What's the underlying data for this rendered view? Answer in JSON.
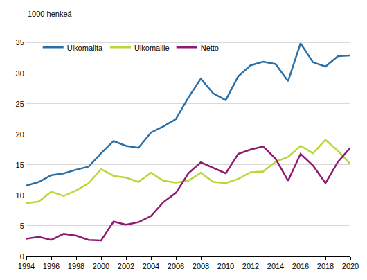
{
  "chart_data": {
    "type": "line",
    "ylabel": "1000 henkeä",
    "x": [
      1994,
      1995,
      1996,
      1997,
      1998,
      1999,
      2000,
      2001,
      2002,
      2003,
      2004,
      2005,
      2006,
      2007,
      2008,
      2009,
      2010,
      2011,
      2012,
      2013,
      2014,
      2015,
      2016,
      2017,
      2018,
      2019,
      2020
    ],
    "series": [
      {
        "name": "Ulkomailta",
        "color": "#2a6fa6",
        "values": [
          11.6,
          12.2,
          13.3,
          13.6,
          14.2,
          14.7,
          16.9,
          18.9,
          18.1,
          17.8,
          20.3,
          21.3,
          22.5,
          26.0,
          29.1,
          26.7,
          25.6,
          29.5,
          31.3,
          31.9,
          31.5,
          28.7,
          34.9,
          31.8,
          31.1,
          32.8,
          32.9
        ]
      },
      {
        "name": "Ulkomaille",
        "color": "#bcd636",
        "values": [
          8.7,
          9.0,
          10.6,
          9.9,
          10.8,
          12.0,
          14.3,
          13.2,
          12.9,
          12.2,
          13.7,
          12.4,
          12.1,
          12.4,
          13.7,
          12.2,
          12.0,
          12.7,
          13.8,
          13.9,
          15.5,
          16.3,
          18.1,
          16.9,
          19.1,
          17.3,
          15.1
        ]
      },
      {
        "name": "Netto",
        "color": "#8e1b6f",
        "values": [
          2.9,
          3.2,
          2.7,
          3.7,
          3.4,
          2.7,
          2.6,
          5.7,
          5.2,
          5.6,
          6.6,
          8.9,
          10.4,
          13.6,
          15.4,
          14.5,
          13.6,
          16.8,
          17.5,
          18.0,
          16.0,
          12.4,
          16.8,
          14.9,
          12.0,
          15.5,
          17.8
        ]
      }
    ],
    "xlim": [
      1994,
      2020
    ],
    "xticks": [
      1994,
      1996,
      1998,
      2000,
      2002,
      2004,
      2006,
      2008,
      2010,
      2012,
      2014,
      2016,
      2018,
      2020
    ],
    "ylim": [
      0,
      37
    ],
    "yticks": [
      0,
      5,
      10,
      15,
      20,
      25,
      30,
      35
    ],
    "grid": true,
    "legend": "top left"
  }
}
